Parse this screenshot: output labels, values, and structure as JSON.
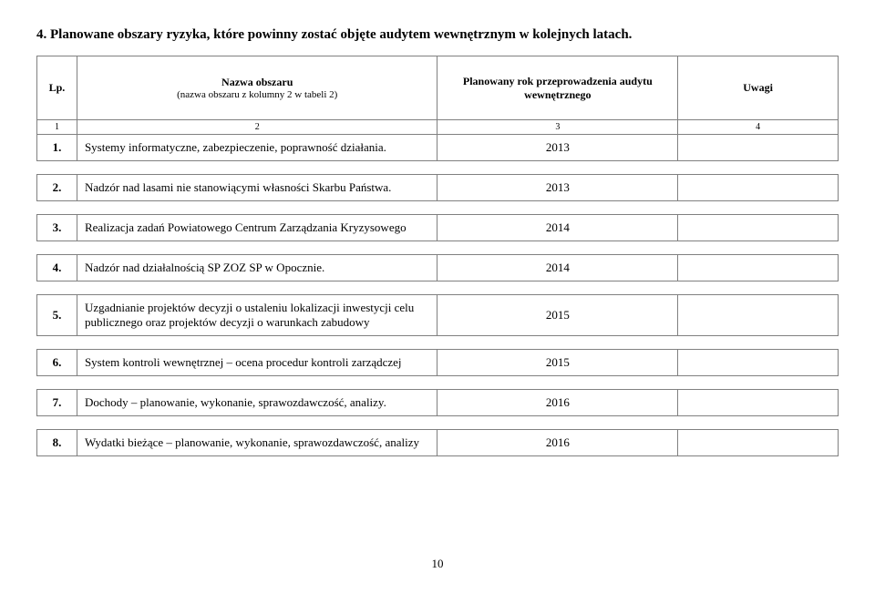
{
  "heading": "4. Planowane obszary ryzyka, które powinny zostać objęte audytem wewnętrznym w kolejnych latach.",
  "headers": {
    "lp": "Lp.",
    "name": "Nazwa obszaru",
    "name_sub": "(nazwa obszaru z kolumny 2 w tabeli 2)",
    "year": "Planowany rok przeprowadzenia audytu wewnętrznego",
    "notes": "Uwagi"
  },
  "numrow": {
    "c1": "1",
    "c2": "2",
    "c3": "3",
    "c4": "4"
  },
  "rows": [
    {
      "lp": "1.",
      "name": "Systemy informatyczne, zabezpieczenie, poprawność działania.",
      "year": "2013",
      "notes": ""
    },
    {
      "lp": "2.",
      "name": "Nadzór nad lasami nie stanowiącymi własności Skarbu Państwa.",
      "year": "2013",
      "notes": ""
    },
    {
      "lp": "3.",
      "name": "Realizacja zadań Powiatowego Centrum Zarządzania Kryzysowego",
      "year": "2014",
      "notes": ""
    },
    {
      "lp": "4.",
      "name": "Nadzór nad działalnością SP ZOZ SP w Opocznie.",
      "year": "2014",
      "notes": ""
    },
    {
      "lp": "5.",
      "name": "Uzgadnianie projektów decyzji o ustaleniu lokalizacji inwestycji celu publicznego oraz projektów decyzji o warunkach zabudowy",
      "year": "2015",
      "notes": ""
    },
    {
      "lp": "6.",
      "name": "System kontroli wewnętrznej – ocena procedur kontroli zarządczej",
      "year": "2015",
      "notes": ""
    },
    {
      "lp": "7.",
      "name": "Dochody – planowanie, wykonanie, sprawozdawczość, analizy.",
      "year": "2016",
      "notes": ""
    },
    {
      "lp": "8.",
      "name": "Wydatki bieżące – planowanie, wykonanie, sprawozdawczość, analizy",
      "year": "2016",
      "notes": ""
    }
  ],
  "page_number": "10"
}
